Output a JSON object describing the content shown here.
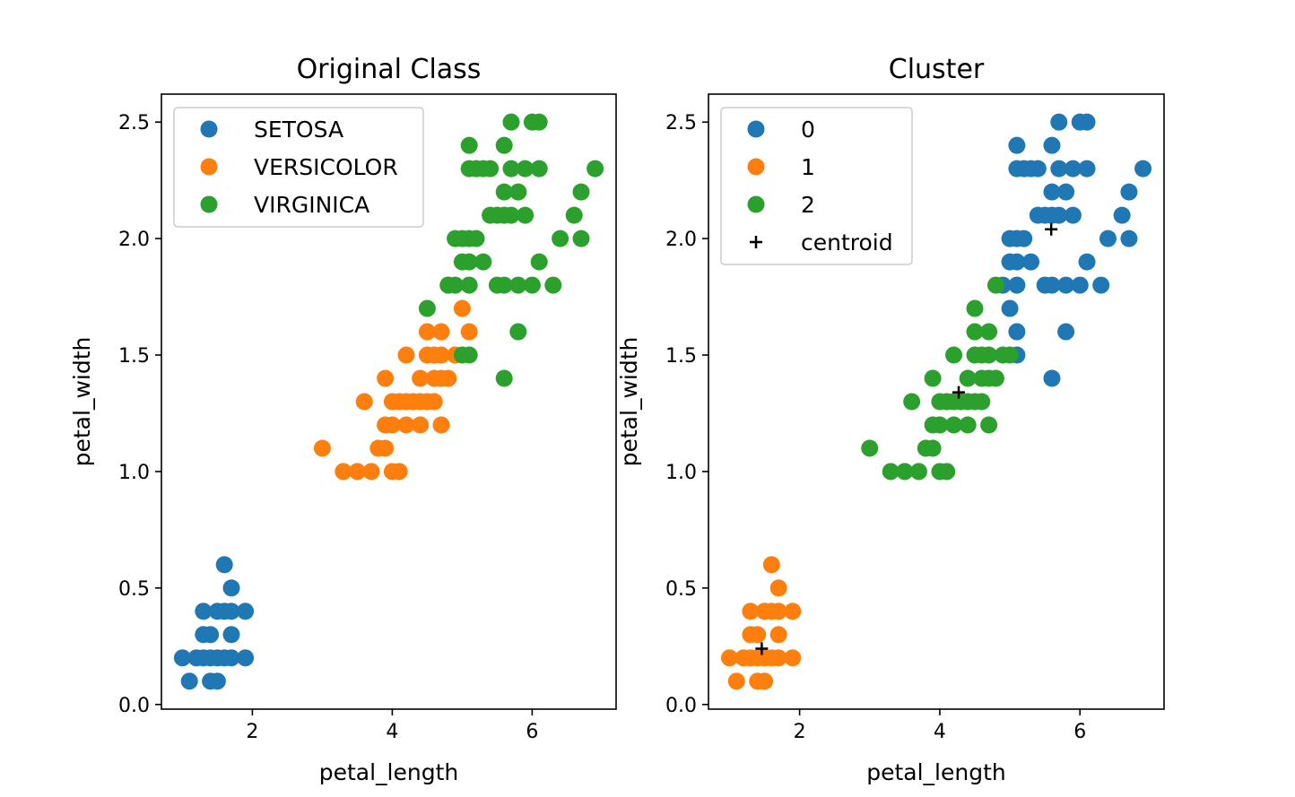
{
  "chart_data": [
    {
      "type": "scatter",
      "title": "Original Class",
      "xlabel": "petal_length",
      "ylabel": "petal_width",
      "xlim": [
        0.7,
        7.2
      ],
      "ylim": [
        -0.02,
        2.62
      ],
      "xticks": [
        "2",
        "4",
        "6"
      ],
      "yticks": [
        "0.0",
        "0.5",
        "1.0",
        "1.5",
        "2.0",
        "2.5"
      ],
      "legend_position": "top-left",
      "grid": false,
      "series": [
        {
          "name": "SETOSA",
          "color": "#1f77b4",
          "points": [
            [
              1.0,
              0.2
            ],
            [
              1.1,
              0.1
            ],
            [
              1.2,
              0.2
            ],
            [
              1.3,
              0.2
            ],
            [
              1.3,
              0.3
            ],
            [
              1.3,
              0.4
            ],
            [
              1.4,
              0.1
            ],
            [
              1.4,
              0.2
            ],
            [
              1.4,
              0.3
            ],
            [
              1.5,
              0.1
            ],
            [
              1.5,
              0.2
            ],
            [
              1.5,
              0.4
            ],
            [
              1.6,
              0.2
            ],
            [
              1.6,
              0.4
            ],
            [
              1.6,
              0.6
            ],
            [
              1.7,
              0.2
            ],
            [
              1.7,
              0.3
            ],
            [
              1.7,
              0.4
            ],
            [
              1.7,
              0.5
            ],
            [
              1.9,
              0.2
            ],
            [
              1.9,
              0.4
            ]
          ]
        },
        {
          "name": "VERSICOLOR",
          "color": "#ff7f0e",
          "points": [
            [
              3.0,
              1.1
            ],
            [
              3.3,
              1.0
            ],
            [
              3.5,
              1.0
            ],
            [
              3.6,
              1.3
            ],
            [
              3.7,
              1.0
            ],
            [
              3.8,
              1.1
            ],
            [
              3.9,
              1.1
            ],
            [
              3.9,
              1.2
            ],
            [
              3.9,
              1.4
            ],
            [
              4.0,
              1.0
            ],
            [
              4.0,
              1.2
            ],
            [
              4.0,
              1.3
            ],
            [
              4.1,
              1.0
            ],
            [
              4.1,
              1.3
            ],
            [
              4.2,
              1.2
            ],
            [
              4.2,
              1.3
            ],
            [
              4.2,
              1.5
            ],
            [
              4.3,
              1.3
            ],
            [
              4.4,
              1.2
            ],
            [
              4.4,
              1.3
            ],
            [
              4.4,
              1.4
            ],
            [
              4.5,
              1.3
            ],
            [
              4.5,
              1.5
            ],
            [
              4.5,
              1.6
            ],
            [
              4.6,
              1.3
            ],
            [
              4.6,
              1.4
            ],
            [
              4.6,
              1.5
            ],
            [
              4.7,
              1.2
            ],
            [
              4.7,
              1.4
            ],
            [
              4.7,
              1.5
            ],
            [
              4.7,
              1.6
            ],
            [
              4.8,
              1.4
            ],
            [
              4.8,
              1.8
            ],
            [
              4.9,
              1.5
            ],
            [
              5.0,
              1.7
            ],
            [
              5.1,
              1.6
            ]
          ]
        },
        {
          "name": "VIRGINICA",
          "color": "#2ca02c",
          "points": [
            [
              4.5,
              1.7
            ],
            [
              4.8,
              1.8
            ],
            [
              4.9,
              1.8
            ],
            [
              4.9,
              2.0
            ],
            [
              5.0,
              1.5
            ],
            [
              5.0,
              1.9
            ],
            [
              5.0,
              2.0
            ],
            [
              5.1,
              1.5
            ],
            [
              5.1,
              1.8
            ],
            [
              5.1,
              1.9
            ],
            [
              5.1,
              2.0
            ],
            [
              5.1,
              2.3
            ],
            [
              5.1,
              2.4
            ],
            [
              5.2,
              2.0
            ],
            [
              5.2,
              2.3
            ],
            [
              5.3,
              1.9
            ],
            [
              5.3,
              2.3
            ],
            [
              5.4,
              2.1
            ],
            [
              5.4,
              2.3
            ],
            [
              5.5,
              1.8
            ],
            [
              5.5,
              2.1
            ],
            [
              5.6,
              1.4
            ],
            [
              5.6,
              1.8
            ],
            [
              5.6,
              2.1
            ],
            [
              5.6,
              2.2
            ],
            [
              5.6,
              2.4
            ],
            [
              5.7,
              2.1
            ],
            [
              5.7,
              2.3
            ],
            [
              5.7,
              2.5
            ],
            [
              5.8,
              1.6
            ],
            [
              5.8,
              1.8
            ],
            [
              5.8,
              2.2
            ],
            [
              5.9,
              2.1
            ],
            [
              5.9,
              2.3
            ],
            [
              6.0,
              1.8
            ],
            [
              6.0,
              2.5
            ],
            [
              6.1,
              1.9
            ],
            [
              6.1,
              2.3
            ],
            [
              6.1,
              2.5
            ],
            [
              6.3,
              1.8
            ],
            [
              6.4,
              2.0
            ],
            [
              6.6,
              2.1
            ],
            [
              6.7,
              2.0
            ],
            [
              6.7,
              2.2
            ],
            [
              6.9,
              2.3
            ]
          ]
        }
      ]
    },
    {
      "type": "scatter",
      "title": "Cluster",
      "xlabel": "petal_length",
      "ylabel": "petal_width",
      "xlim": [
        0.7,
        7.2
      ],
      "ylim": [
        -0.02,
        2.62
      ],
      "xticks": [
        "2",
        "4",
        "6"
      ],
      "yticks": [
        "0.0",
        "0.5",
        "1.0",
        "1.5",
        "2.0",
        "2.5"
      ],
      "legend_position": "top-left",
      "grid": false,
      "series": [
        {
          "name": "0",
          "color": "#1f77b4",
          "points": [
            [
              4.9,
              1.8
            ],
            [
              5.0,
              1.7
            ],
            [
              5.0,
              1.9
            ],
            [
              5.0,
              2.0
            ],
            [
              5.1,
              1.5
            ],
            [
              5.1,
              1.6
            ],
            [
              5.1,
              1.8
            ],
            [
              5.1,
              1.9
            ],
            [
              5.1,
              2.0
            ],
            [
              5.1,
              2.3
            ],
            [
              5.1,
              2.4
            ],
            [
              5.2,
              2.0
            ],
            [
              5.2,
              2.3
            ],
            [
              5.3,
              1.9
            ],
            [
              5.3,
              2.3
            ],
            [
              5.4,
              2.1
            ],
            [
              5.4,
              2.3
            ],
            [
              5.5,
              1.8
            ],
            [
              5.5,
              2.1
            ],
            [
              5.6,
              1.4
            ],
            [
              5.6,
              1.8
            ],
            [
              5.6,
              2.1
            ],
            [
              5.6,
              2.2
            ],
            [
              5.6,
              2.4
            ],
            [
              5.7,
              2.1
            ],
            [
              5.7,
              2.3
            ],
            [
              5.7,
              2.5
            ],
            [
              5.8,
              1.6
            ],
            [
              5.8,
              1.8
            ],
            [
              5.8,
              2.2
            ],
            [
              5.9,
              2.1
            ],
            [
              5.9,
              2.3
            ],
            [
              6.0,
              1.8
            ],
            [
              6.0,
              2.5
            ],
            [
              6.1,
              1.9
            ],
            [
              6.1,
              2.3
            ],
            [
              6.1,
              2.5
            ],
            [
              6.3,
              1.8
            ],
            [
              6.4,
              2.0
            ],
            [
              6.6,
              2.1
            ],
            [
              6.7,
              2.0
            ],
            [
              6.7,
              2.2
            ],
            [
              6.9,
              2.3
            ]
          ]
        },
        {
          "name": "1",
          "color": "#ff7f0e",
          "points": [
            [
              1.0,
              0.2
            ],
            [
              1.1,
              0.1
            ],
            [
              1.2,
              0.2
            ],
            [
              1.3,
              0.2
            ],
            [
              1.3,
              0.3
            ],
            [
              1.3,
              0.4
            ],
            [
              1.4,
              0.1
            ],
            [
              1.4,
              0.2
            ],
            [
              1.4,
              0.3
            ],
            [
              1.5,
              0.1
            ],
            [
              1.5,
              0.2
            ],
            [
              1.5,
              0.4
            ],
            [
              1.6,
              0.2
            ],
            [
              1.6,
              0.4
            ],
            [
              1.6,
              0.6
            ],
            [
              1.7,
              0.2
            ],
            [
              1.7,
              0.3
            ],
            [
              1.7,
              0.4
            ],
            [
              1.7,
              0.5
            ],
            [
              1.9,
              0.2
            ],
            [
              1.9,
              0.4
            ]
          ]
        },
        {
          "name": "2",
          "color": "#2ca02c",
          "points": [
            [
              3.0,
              1.1
            ],
            [
              3.3,
              1.0
            ],
            [
              3.5,
              1.0
            ],
            [
              3.6,
              1.3
            ],
            [
              3.7,
              1.0
            ],
            [
              3.8,
              1.1
            ],
            [
              3.9,
              1.1
            ],
            [
              3.9,
              1.2
            ],
            [
              3.9,
              1.4
            ],
            [
              4.0,
              1.0
            ],
            [
              4.0,
              1.2
            ],
            [
              4.0,
              1.3
            ],
            [
              4.1,
              1.0
            ],
            [
              4.1,
              1.3
            ],
            [
              4.2,
              1.2
            ],
            [
              4.2,
              1.3
            ],
            [
              4.2,
              1.5
            ],
            [
              4.3,
              1.3
            ],
            [
              4.4,
              1.2
            ],
            [
              4.4,
              1.3
            ],
            [
              4.4,
              1.4
            ],
            [
              4.5,
              1.3
            ],
            [
              4.5,
              1.5
            ],
            [
              4.5,
              1.6
            ],
            [
              4.5,
              1.7
            ],
            [
              4.6,
              1.3
            ],
            [
              4.6,
              1.4
            ],
            [
              4.6,
              1.5
            ],
            [
              4.7,
              1.2
            ],
            [
              4.7,
              1.4
            ],
            [
              4.7,
              1.5
            ],
            [
              4.7,
              1.6
            ],
            [
              4.8,
              1.4
            ],
            [
              4.8,
              1.8
            ],
            [
              4.9,
              1.5
            ],
            [
              5.0,
              1.5
            ]
          ]
        },
        {
          "name": "centroid",
          "color": "#000000",
          "marker": "plus",
          "points": [
            [
              1.46,
              0.24
            ],
            [
              4.27,
              1.34
            ],
            [
              5.59,
              2.04
            ]
          ]
        }
      ]
    }
  ]
}
